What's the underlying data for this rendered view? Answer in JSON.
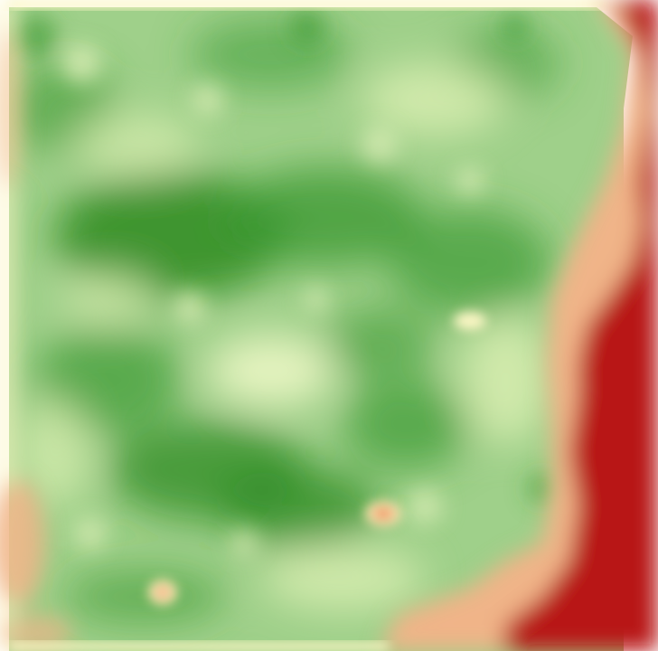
{
  "map": {
    "type": "raster-heatmap",
    "colormap": "red-yellow-green",
    "colors": {
      "background": "#ffffff",
      "high": "#2e8b22",
      "high_mid": "#5fae4c",
      "mid_green": "#9fd08a",
      "low_mid": "#e4f4b8",
      "neutral": "#fbf6c4",
      "low": "#f0b488",
      "very_low": "#b81818"
    }
  }
}
